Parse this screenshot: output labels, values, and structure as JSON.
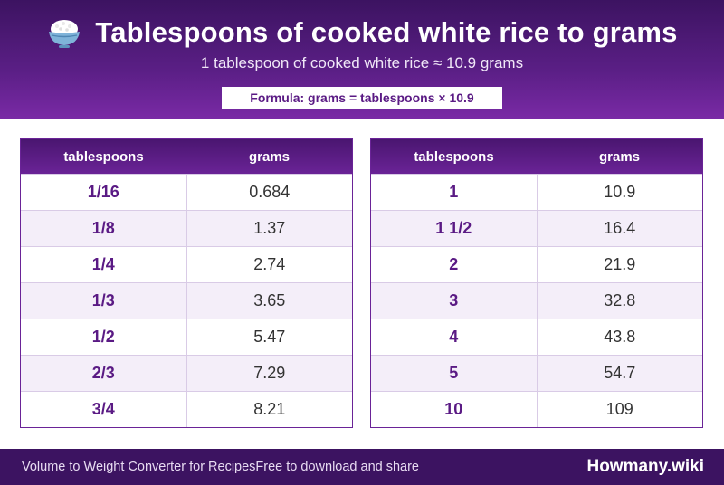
{
  "header": {
    "icon": "rice-bowl-icon",
    "title": "Tablespoons of cooked white rice to grams",
    "subtitle": "1 tablespoon of cooked white rice ≈ 10.9 grams",
    "formula": "Formula: grams = tablespoons × 10.9"
  },
  "tables": [
    {
      "col_headers": [
        "tablespoons",
        "grams"
      ],
      "rows": [
        {
          "tablespoons": "1/16",
          "grams": "0.684"
        },
        {
          "tablespoons": "1/8",
          "grams": "1.37"
        },
        {
          "tablespoons": "1/4",
          "grams": "2.74"
        },
        {
          "tablespoons": "1/3",
          "grams": "3.65"
        },
        {
          "tablespoons": "1/2",
          "grams": "5.47"
        },
        {
          "tablespoons": "2/3",
          "grams": "7.29"
        },
        {
          "tablespoons": "3/4",
          "grams": "8.21"
        }
      ]
    },
    {
      "col_headers": [
        "tablespoons",
        "grams"
      ],
      "rows": [
        {
          "tablespoons": "1",
          "grams": "10.9"
        },
        {
          "tablespoons": "1 1/2",
          "grams": "16.4"
        },
        {
          "tablespoons": "2",
          "grams": "21.9"
        },
        {
          "tablespoons": "3",
          "grams": "32.8"
        },
        {
          "tablespoons": "4",
          "grams": "43.8"
        },
        {
          "tablespoons": "5",
          "grams": "54.7"
        },
        {
          "tablespoons": "10",
          "grams": "109"
        }
      ]
    }
  ],
  "footer": {
    "text": "Volume to Weight Converter for RecipesFree to download and share",
    "brand": "Howmany.wiki"
  },
  "colors": {
    "header_dark": "#3c1361",
    "header_light": "#7a2aa6",
    "accent_text": "#5a1a84",
    "row_alt": "#f4eef9"
  }
}
